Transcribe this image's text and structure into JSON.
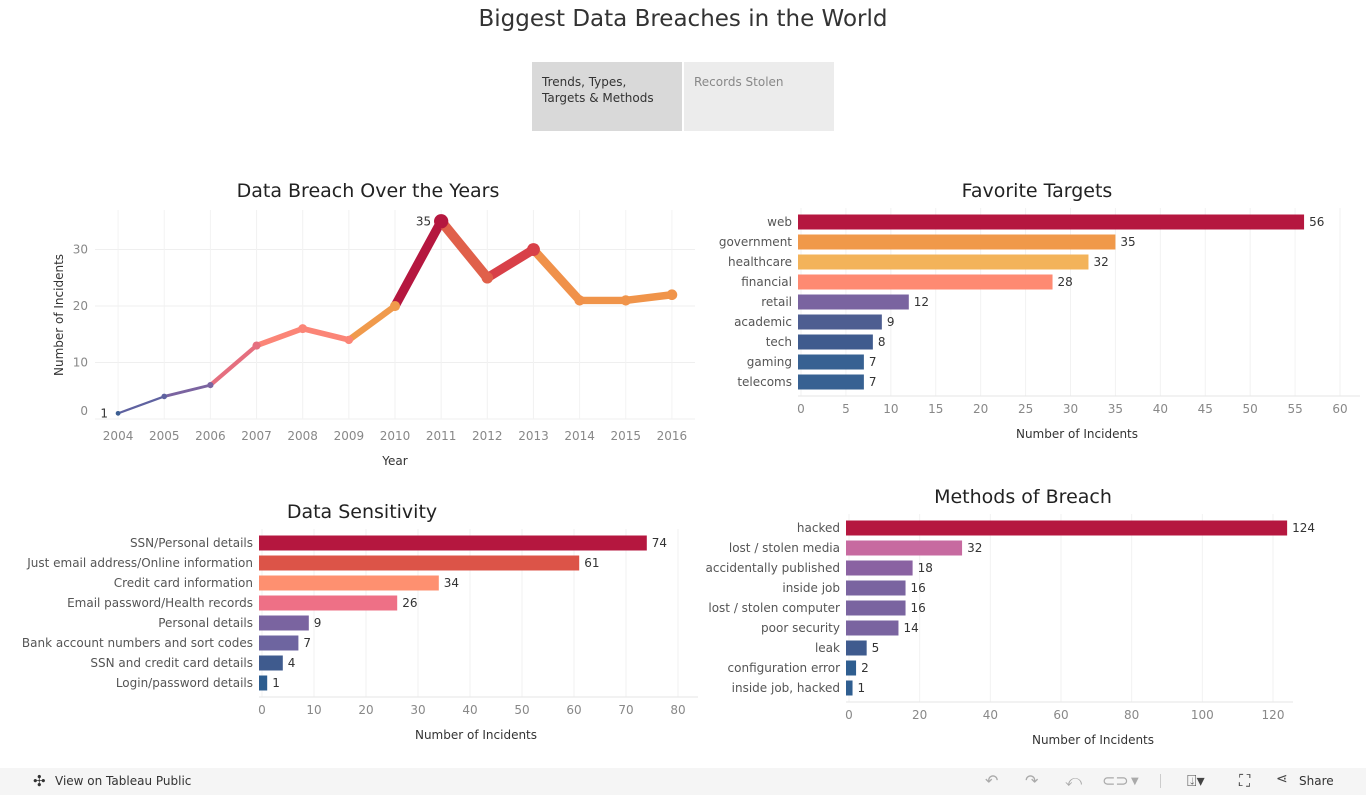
{
  "title": "Biggest Data Breaches in the World",
  "tabs": [
    {
      "label": "Trends, Types, Targets & Methods",
      "active": true
    },
    {
      "label": "Records Stolen",
      "active": false
    }
  ],
  "chart_data": [
    {
      "type": "line",
      "title": "Data Breach Over the Years",
      "xlabel": "Year",
      "ylabel": "Number of Incidents",
      "x": [
        "2004",
        "2005",
        "2006",
        "2007",
        "2008",
        "2009",
        "2010",
        "2011",
        "2012",
        "2013",
        "2014",
        "2015",
        "2016"
      ],
      "values": [
        1,
        4,
        6,
        13,
        16,
        14,
        20,
        35,
        25,
        30,
        21,
        21,
        22
      ],
      "colors": [
        "#3c5e92",
        "#5f62a0",
        "#7b64a0",
        "#e56f7f",
        "#fb8577",
        "#fb8577",
        "#f09a4c",
        "#b5173f",
        "#e0604a",
        "#d84048",
        "#f0914a",
        "#f0944a",
        "#f0944a"
      ],
      "data_labels": [
        {
          "x": "2004",
          "text": "1"
        },
        {
          "x": "2011",
          "text": "35"
        }
      ],
      "yticks": [
        0,
        10,
        20,
        30
      ],
      "ylim": [
        0,
        37
      ]
    },
    {
      "type": "bar",
      "title": "Favorite Targets",
      "xlabel": "Number of Incidents",
      "categories": [
        "web",
        "government",
        "healthcare",
        "financial",
        "retail",
        "academic",
        "tech",
        "gaming",
        "telecoms"
      ],
      "values": [
        56,
        35,
        32,
        28,
        12,
        9,
        8,
        7,
        7
      ],
      "colors": [
        "#b5173f",
        "#f0994a",
        "#f3b35a",
        "#fe8a72",
        "#7a64a0",
        "#4e5e91",
        "#3f5b8e",
        "#376192",
        "#376192"
      ],
      "xticks": [
        0,
        5,
        10,
        15,
        20,
        25,
        30,
        35,
        40,
        45,
        50,
        55,
        60
      ],
      "xlim": [
        0,
        60
      ]
    },
    {
      "type": "bar",
      "title": "Data Sensitivity",
      "xlabel": "Number of Incidents",
      "categories": [
        "SSN/Personal details",
        "Just email address/Online information",
        "Credit card information",
        "Email password/Health records",
        "Personal details",
        "Bank account numbers and sort codes",
        "SSN and credit card details",
        "Login/password details"
      ],
      "values": [
        74,
        61,
        34,
        26,
        9,
        7,
        4,
        1
      ],
      "colors": [
        "#b5173f",
        "#dc5448",
        "#fe9070",
        "#ee7086",
        "#7a64a0",
        "#6e65a0",
        "#3f5b8e",
        "#2d5d8f"
      ],
      "xticks": [
        0,
        10,
        20,
        30,
        40,
        50,
        60,
        70,
        80
      ],
      "xlim": [
        0,
        80
      ]
    },
    {
      "type": "bar",
      "title": "Methods of Breach",
      "xlabel": "Number of Incidents",
      "categories": [
        "hacked",
        "lost / stolen media",
        "accidentally published",
        "inside job",
        "lost / stolen computer",
        "poor security",
        "leak",
        "configuration error",
        "inside job, hacked"
      ],
      "values": [
        124,
        32,
        18,
        16,
        16,
        14,
        5,
        2,
        1
      ],
      "colors": [
        "#b5173f",
        "#c76aa0",
        "#8a62a2",
        "#7a64a0",
        "#7a64a0",
        "#7a64a0",
        "#3f5b8e",
        "#2f5e90",
        "#2f5e90"
      ],
      "xticks": [
        0,
        20,
        40,
        60,
        80,
        100,
        120
      ],
      "xlim": [
        0,
        120
      ]
    }
  ],
  "footer": {
    "view_label": "View on Tableau Public",
    "share_label": "Share"
  }
}
